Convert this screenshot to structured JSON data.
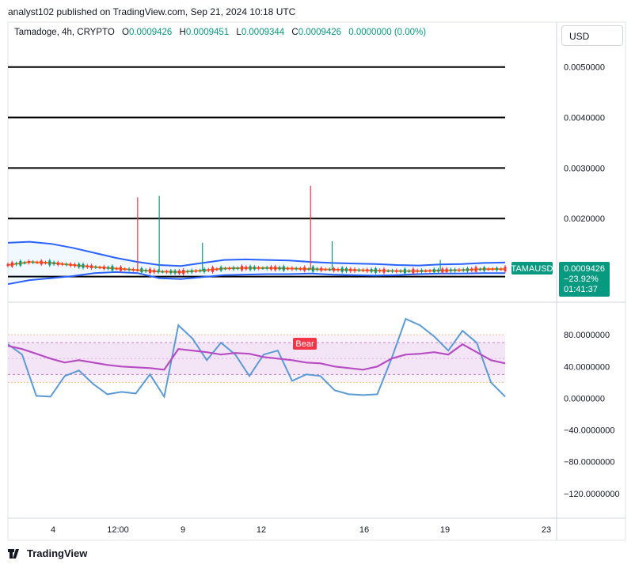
{
  "header": {
    "published": "analyst102 published on TradingView.com, Sep 21, 2024 10:18 UTC"
  },
  "legend": {
    "symbol": "Tamadoge, 4h, CRYPTO",
    "o_label": "O",
    "o": "0.0009426",
    "h_label": "H",
    "h": "0.0009451",
    "l_label": "L",
    "l": "0.0009344",
    "c_label": "C",
    "c": "0.0009426",
    "change": "0.0000000 (0.00%)"
  },
  "currency_button": "USD",
  "price_badge": {
    "ticker": "TAMAUSD",
    "price": "0.0009426",
    "change_pct": "−23.92%",
    "countdown": "01:41:37"
  },
  "bear_label": "Bear",
  "colors": {
    "bb": "#2962ff",
    "ma": "#f57c00",
    "up": "#089981",
    "down": "#f23645",
    "stoch_k": "#5b9bd5",
    "stoch_d": "#b84cc4",
    "band": "#f3e5f5"
  },
  "chart_data": [
    {
      "type": "line",
      "title": "",
      "panel": "price",
      "y_ticks": [
        "0.0050000",
        "0.0040000",
        "0.0030000",
        "0.0020000"
      ],
      "ylim": [
        0.0005,
        0.0057
      ],
      "horizontal_levels": [
        0.005,
        0.004,
        0.003,
        0.002,
        0.00085
      ],
      "x_tick_labels": [
        "4",
        "12:00",
        "9",
        "12",
        "16",
        "19",
        "23"
      ],
      "series": [
        {
          "name": "",
          "kind": "bollinger_upper",
          "values": [
            0.00152,
            0.00154,
            0.0015,
            0.00142,
            0.00132,
            0.00122,
            0.00114,
            0.00108,
            0.00106,
            0.00112,
            0.00118,
            0.00119,
            0.00118,
            0.00117,
            0.00114,
            0.00112,
            0.00111,
            0.0011,
            0.00108,
            0.00107,
            0.00109,
            0.0011,
            0.00112,
            0.00113
          ]
        },
        {
          "name": "",
          "kind": "bollinger_lower",
          "values": [
            0.0007,
            0.00078,
            0.00082,
            0.00086,
            0.00092,
            0.00094,
            0.00092,
            0.00082,
            0.0008,
            0.00084,
            0.00088,
            0.00089,
            0.0009,
            0.0009,
            0.00091,
            0.00089,
            0.00088,
            0.00087,
            0.00088,
            0.0009,
            0.00091,
            0.00091,
            0.00092,
            0.00092
          ]
        },
        {
          "name": "",
          "kind": "moving_average",
          "values": [
            0.00108,
            0.00114,
            0.00112,
            0.00108,
            0.00104,
            0.00101,
            0.00098,
            0.00095,
            0.00094,
            0.00097,
            0.00101,
            0.00102,
            0.00102,
            0.00101,
            0.001,
            0.00099,
            0.00098,
            0.00097,
            0.00096,
            0.00096,
            0.00097,
            0.00098,
            0.001,
            0.001
          ]
        }
      ],
      "spikes": [
        {
          "x_index": 6,
          "high": 0.00242,
          "direction": "down"
        },
        {
          "x_index": 7,
          "high": 0.00245,
          "direction": "up"
        },
        {
          "x_index": 9,
          "high": 0.00152,
          "direction": "up"
        },
        {
          "x_index": 14,
          "high": 0.00265,
          "direction": "down"
        },
        {
          "x_index": 15,
          "high": 0.00155,
          "direction": "up"
        },
        {
          "x_index": 20,
          "high": 0.00118,
          "direction": "up"
        }
      ],
      "last_price": 0.0009426
    },
    {
      "type": "line",
      "title": "",
      "panel": "stochastic_rsi",
      "y_ticks": [
        "80.0000000",
        "40.0000000",
        "0.0000000",
        "−40.0000000",
        "−80.0000000",
        "−120.0000000"
      ],
      "ylim": [
        -150,
        120
      ],
      "bands": [
        80,
        70,
        50,
        30,
        20
      ],
      "series": [
        {
          "name": "",
          "kind": "k",
          "values": [
            68,
            55,
            3,
            2,
            28,
            35,
            18,
            5,
            8,
            6,
            30,
            2,
            92,
            75,
            48,
            70,
            55,
            28,
            55,
            60,
            22,
            30,
            28,
            10,
            5,
            4,
            5,
            50,
            100,
            92,
            78,
            60,
            85,
            70,
            20,
            2
          ]
        },
        {
          "name": "",
          "kind": "d",
          "values": [
            66,
            62,
            56,
            50,
            45,
            48,
            45,
            42,
            40,
            39,
            38,
            36,
            62,
            60,
            58,
            55,
            57,
            56,
            52,
            50,
            48,
            45,
            44,
            40,
            38,
            36,
            40,
            50,
            55,
            56,
            58,
            55,
            68,
            58,
            48,
            44
          ]
        }
      ]
    }
  ]
}
